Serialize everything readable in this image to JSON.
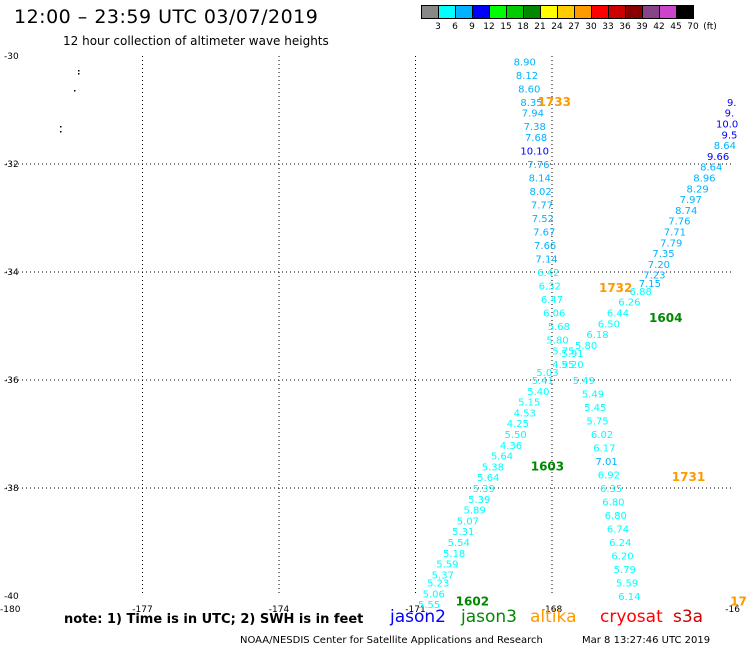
{
  "header": {
    "title": "12:00 – 23:59 UTC 03/07/2019",
    "subtitle": "12 hour collection of altimeter wave heights"
  },
  "colorbar": {
    "colors": [
      "#888888",
      "#00ffff",
      "#00b2ff",
      "#0000ff",
      "#00ff00",
      "#00cc00",
      "#008800",
      "#ffff00",
      "#ffcc00",
      "#ff9900",
      "#ff0000",
      "#cc0000",
      "#880000",
      "#884488",
      "#cc44cc",
      "#000000"
    ],
    "labels": [
      "3",
      "6",
      "9",
      "12",
      "15",
      "18",
      "21",
      "24",
      "27",
      "30",
      "33",
      "36",
      "39",
      "42",
      "45",
      "70",
      "(ft)"
    ]
  },
  "axes": {
    "lat_labels": [
      "-30",
      "-32",
      "-34",
      "-36",
      "-38",
      "-40"
    ],
    "lon_labels": [
      "-180",
      "-177",
      "-174",
      "-171",
      "-168",
      "-16"
    ]
  },
  "chart_data": {
    "type": "scatter",
    "series": [
      {
        "name": "jason2",
        "color": "#0000ff"
      },
      {
        "name": "jason3",
        "color": "#008800"
      },
      {
        "name": "altika",
        "color": "#ff9900"
      },
      {
        "name": "cryosat",
        "color": "#ff0000"
      },
      {
        "name": "s3a",
        "color": "#cc0000"
      }
    ],
    "tracks": [
      {
        "points": [
          {
            "lat": -30.1,
            "lon": -168.6,
            "v": "8.90",
            "c": "#00b2ff"
          },
          {
            "lat": -30.35,
            "lon": -168.55,
            "v": "8.12",
            "c": "#00b2ff"
          },
          {
            "lat": -30.6,
            "lon": -168.5,
            "v": "8.60",
            "c": "#00b2ff"
          },
          {
            "lat": -30.85,
            "lon": -168.45,
            "v": "8.35",
            "c": "#00b2ff"
          },
          {
            "lat": -31.05,
            "lon": -168.42,
            "v": "7.94",
            "c": "#00b2ff"
          },
          {
            "lat": -31.3,
            "lon": -168.38,
            "v": "7.38",
            "c": "#00b2ff"
          },
          {
            "lat": -31.5,
            "lon": -168.35,
            "v": "7.68",
            "c": "#00b2ff"
          },
          {
            "lat": -31.75,
            "lon": -168.38,
            "v": "10.10",
            "c": "#0000ff"
          },
          {
            "lat": -32.0,
            "lon": -168.3,
            "v": "7.76",
            "c": "#00b2ff"
          },
          {
            "lat": -32.25,
            "lon": -168.27,
            "v": "8.14",
            "c": "#00b2ff"
          },
          {
            "lat": -32.5,
            "lon": -168.25,
            "v": "8.02",
            "c": "#00b2ff"
          },
          {
            "lat": -32.75,
            "lon": -168.22,
            "v": "7.77",
            "c": "#00b2ff"
          },
          {
            "lat": -33.0,
            "lon": -168.2,
            "v": "7.52",
            "c": "#00b2ff"
          },
          {
            "lat": -33.25,
            "lon": -168.17,
            "v": "7.67",
            "c": "#00b2ff"
          },
          {
            "lat": -33.5,
            "lon": -168.15,
            "v": "7.66",
            "c": "#00b2ff"
          },
          {
            "lat": -33.75,
            "lon": -168.12,
            "v": "7.14",
            "c": "#00b2ff"
          },
          {
            "lat": -34.0,
            "lon": -168.08,
            "v": "6.42",
            "c": "#00ffff"
          },
          {
            "lat": -34.25,
            "lon": -168.05,
            "v": "6.32",
            "c": "#00ffff"
          },
          {
            "lat": -34.5,
            "lon": -168.0,
            "v": "6.47",
            "c": "#00ffff"
          },
          {
            "lat": -34.75,
            "lon": -167.95,
            "v": "6.06",
            "c": "#00ffff"
          },
          {
            "lat": -35.0,
            "lon": -167.85,
            "v": "5.68",
            "c": "#00ffff"
          },
          {
            "lat": -35.25,
            "lon": -167.88,
            "v": "5.80",
            "c": "#00ffff"
          },
          {
            "lat": -35.45,
            "lon": -167.75,
            "v": "5.75",
            "c": "#00ffff"
          },
          {
            "lat": -35.7,
            "lon": -167.55,
            "v": "5.20",
            "c": "#00ffff"
          },
          {
            "lat": -36.0,
            "lon": -167.3,
            "v": "5.49",
            "c": "#00ffff"
          },
          {
            "lat": -36.25,
            "lon": -167.1,
            "v": "5.49",
            "c": "#00ffff"
          },
          {
            "lat": -36.5,
            "lon": -167.05,
            "v": "5.45",
            "c": "#00ffff"
          },
          {
            "lat": -36.75,
            "lon": -167.0,
            "v": "5.75",
            "c": "#00ffff"
          },
          {
            "lat": -37.0,
            "lon": -166.9,
            "v": "6.02",
            "c": "#00ffff"
          },
          {
            "lat": -37.25,
            "lon": -166.85,
            "v": "6.17",
            "c": "#00ffff"
          },
          {
            "lat": -37.5,
            "lon": -166.8,
            "v": "7.01",
            "c": "#00b2ff"
          },
          {
            "lat": -37.75,
            "lon": -166.75,
            "v": "6.92",
            "c": "#00ffff"
          },
          {
            "lat": -38.0,
            "lon": -166.7,
            "v": "6.35",
            "c": "#00ffff"
          },
          {
            "lat": -38.25,
            "lon": -166.65,
            "v": "6.80",
            "c": "#00ffff"
          },
          {
            "lat": -38.5,
            "lon": -166.6,
            "v": "6.80",
            "c": "#00ffff"
          },
          {
            "lat": -38.75,
            "lon": -166.55,
            "v": "6.74",
            "c": "#00ffff"
          },
          {
            "lat": -39.0,
            "lon": -166.5,
            "v": "6.24",
            "c": "#00ffff"
          },
          {
            "lat": -39.25,
            "lon": -166.45,
            "v": "6.20",
            "c": "#00ffff"
          },
          {
            "lat": -39.5,
            "lon": -166.4,
            "v": "5.79",
            "c": "#00ffff"
          },
          {
            "lat": -39.75,
            "lon": -166.35,
            "v": "5.59",
            "c": "#00ffff"
          },
          {
            "lat": -40.0,
            "lon": -166.3,
            "v": "6.14",
            "c": "#00ffff"
          }
        ]
      },
      {
        "points": [
          {
            "lat": -30.85,
            "lon": -164.05,
            "v": "9.",
            "c": "#0000ff"
          },
          {
            "lat": -31.05,
            "lon": -164.1,
            "v": "9.",
            "c": "#0000ff"
          },
          {
            "lat": -31.25,
            "lon": -164.15,
            "v": "10.0",
            "c": "#0000ff"
          },
          {
            "lat": -31.45,
            "lon": -164.1,
            "v": "9.5",
            "c": "#0000ff"
          },
          {
            "lat": -31.65,
            "lon": -164.2,
            "v": "8.64",
            "c": "#00b2ff"
          },
          {
            "lat": -31.85,
            "lon": -164.35,
            "v": "9.66",
            "c": "#0000ff"
          },
          {
            "lat": -32.05,
            "lon": -164.5,
            "v": "8.64",
            "c": "#00b2ff"
          },
          {
            "lat": -32.25,
            "lon": -164.65,
            "v": "8.96",
            "c": "#00b2ff"
          },
          {
            "lat": -32.45,
            "lon": -164.8,
            "v": "8.29",
            "c": "#00b2ff"
          },
          {
            "lat": -32.65,
            "lon": -164.95,
            "v": "7.97",
            "c": "#00b2ff"
          },
          {
            "lat": -32.85,
            "lon": -165.05,
            "v": "8.74",
            "c": "#00b2ff"
          },
          {
            "lat": -33.05,
            "lon": -165.2,
            "v": "7.76",
            "c": "#00b2ff"
          },
          {
            "lat": -33.25,
            "lon": -165.3,
            "v": "7.71",
            "c": "#00b2ff"
          },
          {
            "lat": -33.45,
            "lon": -165.38,
            "v": "7.79",
            "c": "#00b2ff"
          },
          {
            "lat": -33.65,
            "lon": -165.55,
            "v": "7.35",
            "c": "#00b2ff"
          },
          {
            "lat": -33.85,
            "lon": -165.65,
            "v": "7.20",
            "c": "#00b2ff"
          },
          {
            "lat": -34.05,
            "lon": -165.75,
            "v": "7.23",
            "c": "#00b2ff"
          },
          {
            "lat": -34.2,
            "lon": -165.85,
            "v": "7.15",
            "c": "#00b2ff"
          },
          {
            "lat": -34.35,
            "lon": -166.05,
            "v": "6.88",
            "c": "#00ffff"
          },
          {
            "lat": -34.55,
            "lon": -166.3,
            "v": "6.26",
            "c": "#00ffff"
          },
          {
            "lat": -34.75,
            "lon": -166.55,
            "v": "6.44",
            "c": "#00ffff"
          },
          {
            "lat": -34.95,
            "lon": -166.75,
            "v": "6.50",
            "c": "#00ffff"
          },
          {
            "lat": -35.15,
            "lon": -167.0,
            "v": "6.18",
            "c": "#00ffff"
          },
          {
            "lat": -35.35,
            "lon": -167.25,
            "v": "5.80",
            "c": "#00ffff"
          },
          {
            "lat": -35.5,
            "lon": -167.55,
            "v": "5.91",
            "c": "#00ffff"
          },
          {
            "lat": -35.7,
            "lon": -167.75,
            "v": "4.95",
            "c": "#00ffff"
          },
          {
            "lat": -35.85,
            "lon": -168.1,
            "v": "5.03",
            "c": "#00ffff"
          },
          {
            "lat": -36.0,
            "lon": -168.2,
            "v": "5.41",
            "c": "#00ffff"
          },
          {
            "lat": -36.2,
            "lon": -168.3,
            "v": "5.40",
            "c": "#00ffff"
          },
          {
            "lat": -36.4,
            "lon": -168.5,
            "v": "5.15",
            "c": "#00ffff"
          },
          {
            "lat": -36.6,
            "lon": -168.6,
            "v": "4.53",
            "c": "#00ffff"
          },
          {
            "lat": -36.8,
            "lon": -168.75,
            "v": "4.25",
            "c": "#00ffff"
          },
          {
            "lat": -37.0,
            "lon": -168.8,
            "v": "5.50",
            "c": "#00ffff"
          },
          {
            "lat": -37.2,
            "lon": -168.9,
            "v": "4.36",
            "c": "#00ffff"
          },
          {
            "lat": -37.4,
            "lon": -169.1,
            "v": "5.64",
            "c": "#00ffff"
          },
          {
            "lat": -37.6,
            "lon": -169.3,
            "v": "5.38",
            "c": "#00ffff"
          },
          {
            "lat": -37.8,
            "lon": -169.4,
            "v": "5.64",
            "c": "#00ffff"
          },
          {
            "lat": -38.0,
            "lon": -169.5,
            "v": "5.39",
            "c": "#00ffff"
          },
          {
            "lat": -38.2,
            "lon": -169.6,
            "v": "5.39",
            "c": "#00ffff"
          },
          {
            "lat": -38.4,
            "lon": -169.7,
            "v": "5.89",
            "c": "#00ffff"
          },
          {
            "lat": -38.6,
            "lon": -169.85,
            "v": "5.07",
            "c": "#00ffff"
          },
          {
            "lat": -38.8,
            "lon": -169.95,
            "v": "5.31",
            "c": "#00ffff"
          },
          {
            "lat": -39.0,
            "lon": -170.05,
            "v": "5.54",
            "c": "#00ffff"
          },
          {
            "lat": -39.2,
            "lon": -170.15,
            "v": "5.18",
            "c": "#00ffff"
          },
          {
            "lat": -39.4,
            "lon": -170.3,
            "v": "5.59",
            "c": "#00ffff"
          },
          {
            "lat": -39.6,
            "lon": -170.4,
            "v": "5.37",
            "c": "#00ffff"
          },
          {
            "lat": -39.75,
            "lon": -170.5,
            "v": "5.23",
            "c": "#00ffff"
          },
          {
            "lat": -39.95,
            "lon": -170.6,
            "v": "5.06",
            "c": "#00ffff"
          },
          {
            "lat": -40.15,
            "lon": -170.7,
            "v": "5.55",
            "c": "#00ffff"
          }
        ]
      }
    ],
    "time_labels": [
      {
        "lat": -30.85,
        "lon": -167.95,
        "v": "1733",
        "c": "#ff9900"
      },
      {
        "lat": -34.3,
        "lon": -166.6,
        "v": "1732",
        "c": "#ff9900"
      },
      {
        "lat": -34.85,
        "lon": -165.5,
        "v": "1604",
        "c": "#008800"
      },
      {
        "lat": -37.6,
        "lon": -168.1,
        "v": "1603",
        "c": "#008800"
      },
      {
        "lat": -37.8,
        "lon": -165.0,
        "v": "1731",
        "c": "#ff9900"
      },
      {
        "lat": -40.1,
        "lon": -169.75,
        "v": "1602",
        "c": "#008800"
      },
      {
        "lat": -40.1,
        "lon": -163.9,
        "v": "17",
        "c": "#ff9900"
      }
    ],
    "lat_range": [
      -40.3,
      -29.95
    ],
    "lon_range": [
      -180,
      -164
    ]
  },
  "footer": {
    "note": "note:  1)  Time is in UTC;  2)  SWH is in feet",
    "legend": [
      "jason2",
      "jason3",
      "altika",
      "cryosat",
      "s3a"
    ],
    "credit": "NOAA/NESDIS Center for Satellite Applications and Research",
    "timestamp": "Mar  8 13:27:46 UTC 2019"
  }
}
